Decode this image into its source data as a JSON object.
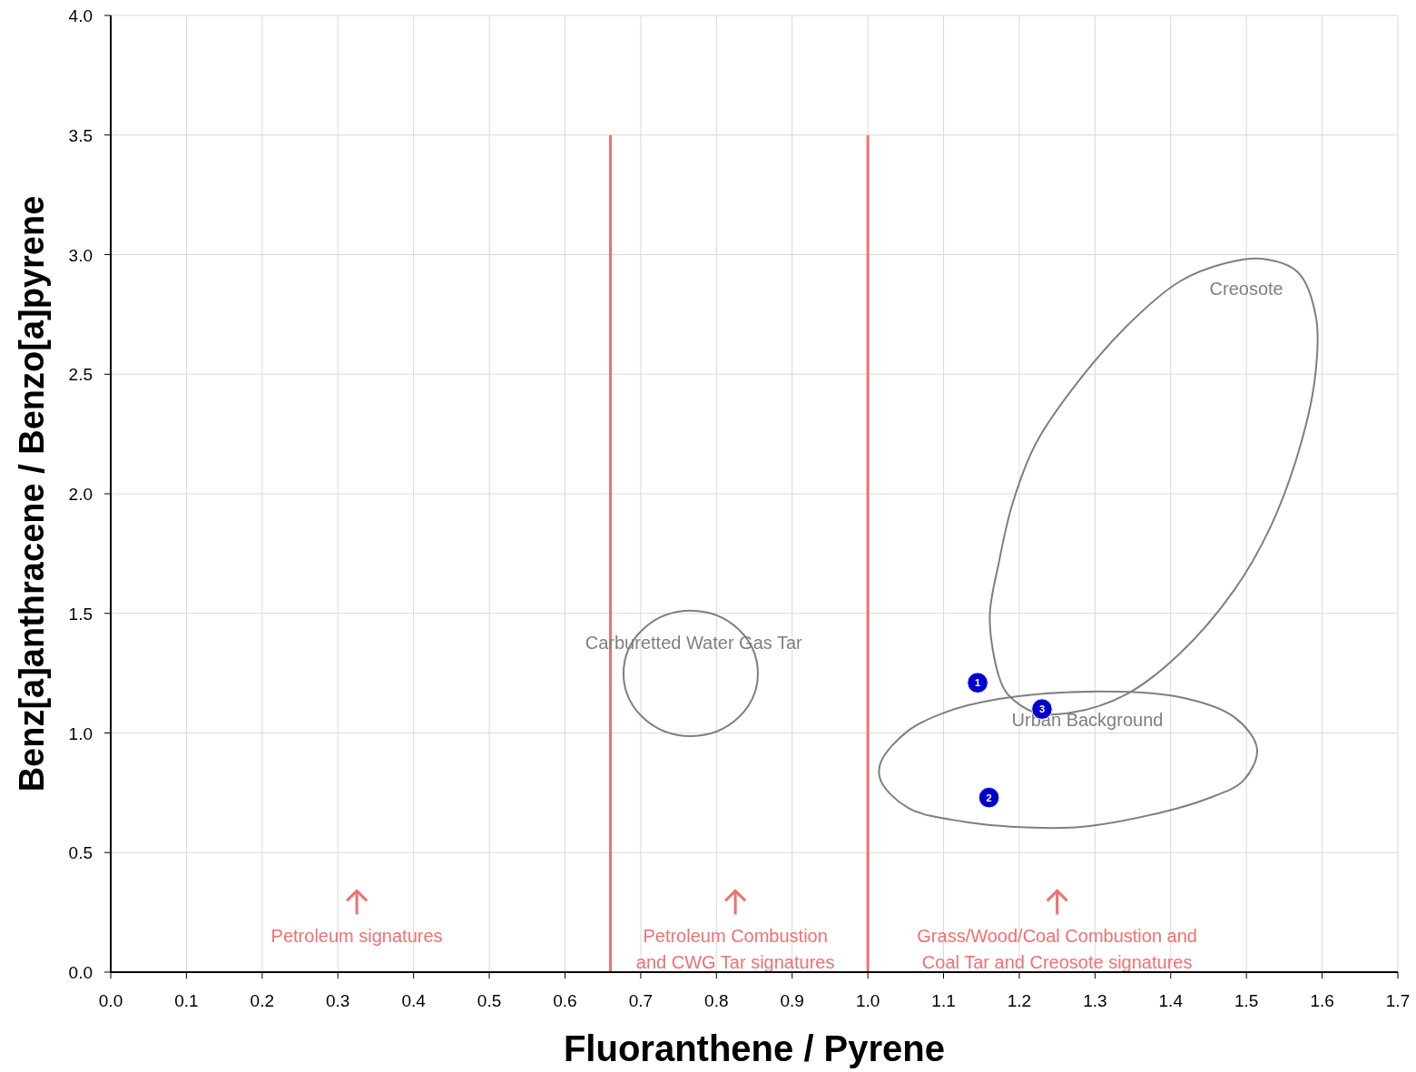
{
  "chart_data": {
    "type": "scatter",
    "xlabel": "Fluoranthene / Pyrene",
    "ylabel": "Benz[a]anthracene / Benzo[a]pyrene",
    "x": [
      1.145,
      1.16,
      1.23
    ],
    "series": [
      {
        "color": "#0000cc",
        "values": [
          1.21,
          0.73,
          1.1
        ]
      }
    ],
    "xlim": [
      0,
      1.7
    ],
    "xticks": [
      {
        "value": 0,
        "label": "0.0"
      },
      {
        "value": 0.1,
        "label": "0.1"
      },
      {
        "value": 0.2,
        "label": "0.2"
      },
      {
        "value": 0.3,
        "label": "0.3"
      },
      {
        "value": 0.4,
        "label": "0.4"
      },
      {
        "value": 0.5,
        "label": "0.5"
      },
      {
        "value": 0.6,
        "label": "0.6"
      },
      {
        "value": 0.7,
        "label": "0.7"
      },
      {
        "value": 0.8,
        "label": "0.8"
      },
      {
        "value": 0.9,
        "label": "0.9"
      },
      {
        "value": 1,
        "label": "1.0"
      },
      {
        "value": 1.1,
        "label": "1.1"
      },
      {
        "value": 1.2,
        "label": "1.2"
      },
      {
        "value": 1.3,
        "label": "1.3"
      },
      {
        "value": 1.4,
        "label": "1.4"
      },
      {
        "value": 1.5,
        "label": "1.5"
      },
      {
        "value": 1.6,
        "label": "1.6"
      },
      {
        "value": 1.7,
        "label": "1.7"
      }
    ],
    "ylim": [
      0,
      4
    ],
    "yticks": [
      {
        "value": 0,
        "label": "0.0"
      },
      {
        "value": 0.5,
        "label": "0.5"
      },
      {
        "value": 1,
        "label": "1.0"
      },
      {
        "value": 1.5,
        "label": "1.5"
      },
      {
        "value": 2,
        "label": "2.0"
      },
      {
        "value": 2.5,
        "label": "2.5"
      },
      {
        "value": 3,
        "label": "3.0"
      },
      {
        "value": 3.5,
        "label": "3.5"
      },
      {
        "value": 4,
        "label": "4.0"
      }
    ],
    "grid": true,
    "marker": "circle",
    "ref_lines": [
      {
        "axis": "x",
        "value": 0.66,
        "color": "#f07070"
      },
      {
        "axis": "x",
        "value": 1.0,
        "color": "#f07070"
      }
    ],
    "annotations": [
      {
        "text": "1",
        "x": 1.145,
        "y": 1.21
      },
      {
        "text": "2",
        "x": 1.16,
        "y": 0.73
      },
      {
        "text": "3",
        "x": 1.23,
        "y": 1.1
      },
      "Creosote",
      "Urban Background",
      "Carburetted Water Gas Tar",
      "Petroleum signatures",
      "Petroleum Combustion\nand CWG Tar signatures",
      "Grass/Wood/Coal Combustion and\nCoal Tar and Creosote signatures"
    ]
  }
}
